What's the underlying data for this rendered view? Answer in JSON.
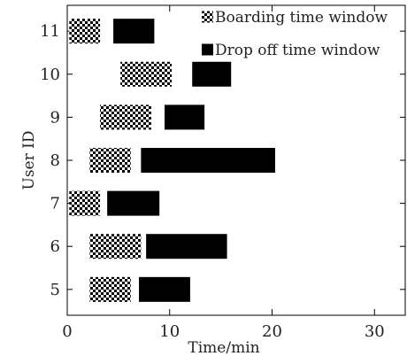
{
  "chart_data": {
    "type": "bar",
    "orientation": "horizontal",
    "xlabel": "Time/min",
    "ylabel": "User ID",
    "xlim": [
      0,
      33
    ],
    "ylim": [
      4.4,
      11.6
    ],
    "xticks": [
      0,
      10,
      20,
      30
    ],
    "yticks": [
      5,
      6,
      7,
      8,
      9,
      10,
      11
    ],
    "grid": false,
    "legend_position": "top-right",
    "series": [
      {
        "name": "Boarding time window",
        "pattern": "checkered",
        "color": "#000000",
        "intervals": [
          {
            "user": 11,
            "start": 0.2,
            "end": 3.2
          },
          {
            "user": 10,
            "start": 5.2,
            "end": 10.2
          },
          {
            "user": 9,
            "start": 3.2,
            "end": 8.2
          },
          {
            "user": 8,
            "start": 2.2,
            "end": 6.2
          },
          {
            "user": 7,
            "start": 0.2,
            "end": 3.2
          },
          {
            "user": 6,
            "start": 2.2,
            "end": 7.2
          },
          {
            "user": 5,
            "start": 2.2,
            "end": 6.2
          }
        ]
      },
      {
        "name": "Drop off time window",
        "pattern": "solid",
        "color": "#000000",
        "intervals": [
          {
            "user": 11,
            "start": 4.5,
            "end": 8.5
          },
          {
            "user": 10,
            "start": 12.2,
            "end": 16.0
          },
          {
            "user": 9,
            "start": 9.5,
            "end": 13.4
          },
          {
            "user": 8,
            "start": 7.2,
            "end": 20.3
          },
          {
            "user": 7,
            "start": 3.9,
            "end": 9.0
          },
          {
            "user": 6,
            "start": 7.7,
            "end": 15.6
          },
          {
            "user": 5,
            "start": 7.0,
            "end": 12.0
          }
        ]
      }
    ]
  }
}
